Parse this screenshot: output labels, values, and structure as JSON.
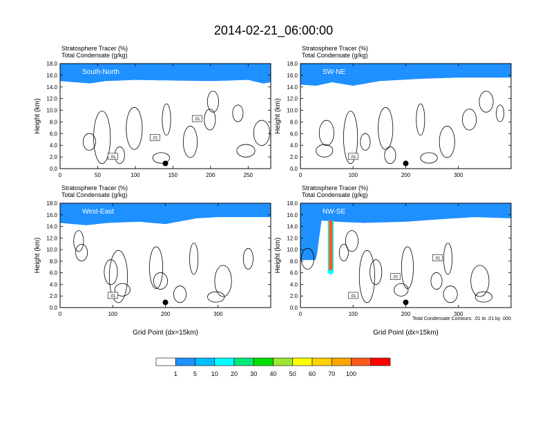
{
  "title": "2014-02-21_06:00:00",
  "colors": {
    "levels": [
      "#ffffff",
      "#1e90ff",
      "#00bfff",
      "#00ffff",
      "#00e87a",
      "#00e000",
      "#a0e632",
      "#ffff00",
      "#ffd200",
      "#ffa500",
      "#ff5a1e",
      "#ff0000"
    ],
    "contour": "#000000"
  },
  "legend": {
    "labels": [
      "1",
      "5",
      "10",
      "20",
      "30",
      "40",
      "50",
      "60",
      "70",
      "100"
    ]
  },
  "chart_data": [
    {
      "type": "heatmap",
      "name": "South-North",
      "label": "South-North",
      "subtitle_1": "Stratosphere Tracer   (%)",
      "subtitle_2": "Total Condensate   (g/kg)",
      "ylabel": "Height (km)",
      "xlabel": "",
      "xlim": [
        0,
        280
      ],
      "xticks": [
        0,
        50,
        100,
        150,
        200,
        250
      ],
      "ylim": [
        0,
        18
      ],
      "yticks": [
        "0.0",
        "2.0",
        "4.0",
        "6.0",
        "8.0",
        "10.0",
        "12.0",
        "14.0",
        "16.0",
        "18.0"
      ],
      "tracer_boundary_km": [
        [
          0,
          15.0
        ],
        [
          20,
          14.8
        ],
        [
          40,
          14.6
        ],
        [
          60,
          15.0
        ],
        [
          100,
          15.2
        ],
        [
          150,
          15.1
        ],
        [
          200,
          15.0
        ],
        [
          250,
          15.2
        ],
        [
          270,
          14.6
        ],
        [
          280,
          14.8
        ]
      ],
      "marker_x": 140,
      "contour_labels": [
        ".01",
        ".01",
        ".01"
      ]
    },
    {
      "type": "heatmap",
      "name": "SW-NE",
      "label": "SW-NE",
      "subtitle_1": "Stratosphere Tracer   (%)",
      "subtitle_2": "Total Condensate   (g/kg)",
      "ylabel": "Height (km)",
      "xlabel": "",
      "xlim": [
        0,
        400
      ],
      "xticks": [
        0,
        100,
        200,
        300
      ],
      "ylim": [
        0,
        18
      ],
      "yticks": [
        "0.0",
        "2.0",
        "4.0",
        "6.0",
        "8.0",
        "10.0",
        "12.0",
        "14.0",
        "16.0",
        "18.0"
      ],
      "tracer_boundary_km": [
        [
          0,
          14.4
        ],
        [
          30,
          14.2
        ],
        [
          60,
          14.8
        ],
        [
          100,
          14.2
        ],
        [
          150,
          15.0
        ],
        [
          230,
          15.4
        ],
        [
          300,
          15.6
        ],
        [
          350,
          15.6
        ],
        [
          400,
          15.6
        ]
      ],
      "marker_x": 200,
      "contour_labels": [
        ".01"
      ]
    },
    {
      "type": "heatmap",
      "name": "West-East",
      "label": "West-East",
      "subtitle_1": "Stratosphere Tracer   (%)",
      "subtitle_2": "Total Condensate   (g/kg)",
      "ylabel": "Height (km)",
      "xlabel": "Grid Point (dx=15km)",
      "xlim": [
        0,
        400
      ],
      "xticks": [
        0,
        100,
        200,
        300
      ],
      "ylim": [
        0,
        18
      ],
      "yticks": [
        "0.0",
        "2.0",
        "4.0",
        "6.0",
        "8.0",
        "10.0",
        "12.0",
        "14.0",
        "16.0",
        "18.0"
      ],
      "tracer_boundary_km": [
        [
          0,
          14.6
        ],
        [
          50,
          14.2
        ],
        [
          90,
          14.6
        ],
        [
          150,
          14.8
        ],
        [
          200,
          14.4
        ],
        [
          260,
          15.4
        ],
        [
          300,
          15.6
        ],
        [
          350,
          15.6
        ],
        [
          400,
          15.6
        ]
      ],
      "marker_x": 200,
      "contour_labels": [
        ".01"
      ]
    },
    {
      "type": "heatmap",
      "name": "NW-SE",
      "label": "NW-SE",
      "subtitle_1": "Stratosphere Tracer   (%)",
      "subtitle_2": "Total Condensate   (g/kg)",
      "ylabel": "Height (km)",
      "xlabel": "Grid Point (dx=15km)",
      "xlim": [
        0,
        400
      ],
      "xticks": [
        0,
        100,
        200,
        300
      ],
      "ylim": [
        0,
        18
      ],
      "yticks": [
        "0.0",
        "2.0",
        "4.0",
        "6.0",
        "8.0",
        "10.0",
        "12.0",
        "14.0",
        "16.0",
        "18.0"
      ],
      "tracer_boundary_km": [
        [
          0,
          8.2
        ],
        [
          30,
          8.2
        ],
        [
          40,
          15.0
        ],
        [
          70,
          14.8
        ],
        [
          120,
          14.6
        ],
        [
          200,
          14.8
        ],
        [
          260,
          15.2
        ],
        [
          330,
          15.6
        ],
        [
          400,
          15.4
        ]
      ],
      "marker_x": 200,
      "contour_labels": [
        ".01",
        ".01",
        ".01"
      ],
      "footnote": "Total Condensate Contours: .01 to .01 by .000"
    }
  ]
}
